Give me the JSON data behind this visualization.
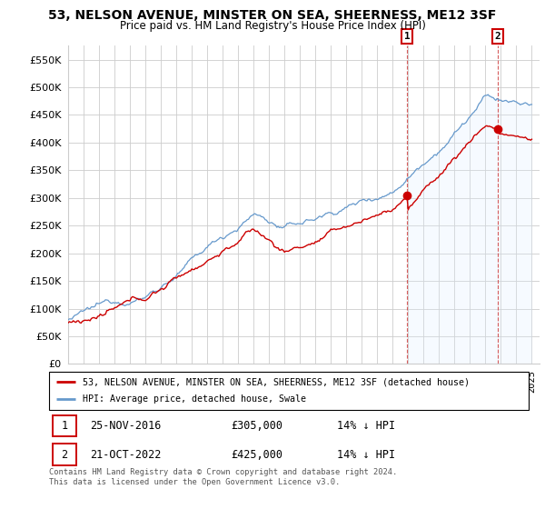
{
  "title": "53, NELSON AVENUE, MINSTER ON SEA, SHEERNESS, ME12 3SF",
  "subtitle": "Price paid vs. HM Land Registry's House Price Index (HPI)",
  "legend_label_red": "53, NELSON AVENUE, MINSTER ON SEA, SHEERNESS, ME12 3SF (detached house)",
  "legend_label_blue": "HPI: Average price, detached house, Swale",
  "annotation1_date": "25-NOV-2016",
  "annotation1_price": "£305,000",
  "annotation1_pct": "14% ↓ HPI",
  "annotation2_date": "21-OCT-2022",
  "annotation2_price": "£425,000",
  "annotation2_pct": "14% ↓ HPI",
  "footer": "Contains HM Land Registry data © Crown copyright and database right 2024.\nThis data is licensed under the Open Government Licence v3.0.",
  "sale1_year": 2016.92,
  "sale2_year": 2022.79,
  "sale1_price": 305000,
  "sale2_price": 425000,
  "ylim": [
    0,
    575000
  ],
  "yticks": [
    0,
    50000,
    100000,
    150000,
    200000,
    250000,
    300000,
    350000,
    400000,
    450000,
    500000,
    550000
  ],
  "xlim_start": 1995,
  "xlim_end": 2025.5,
  "red_color": "#cc0000",
  "blue_color": "#6699cc",
  "blue_fill_color": "#ddeeff",
  "annotation_box_color": "#cc0000",
  "vline1_color": "#cc3333",
  "vline2_color": "#cc3333",
  "background_color": "#ffffff",
  "grid_color": "#cccccc"
}
